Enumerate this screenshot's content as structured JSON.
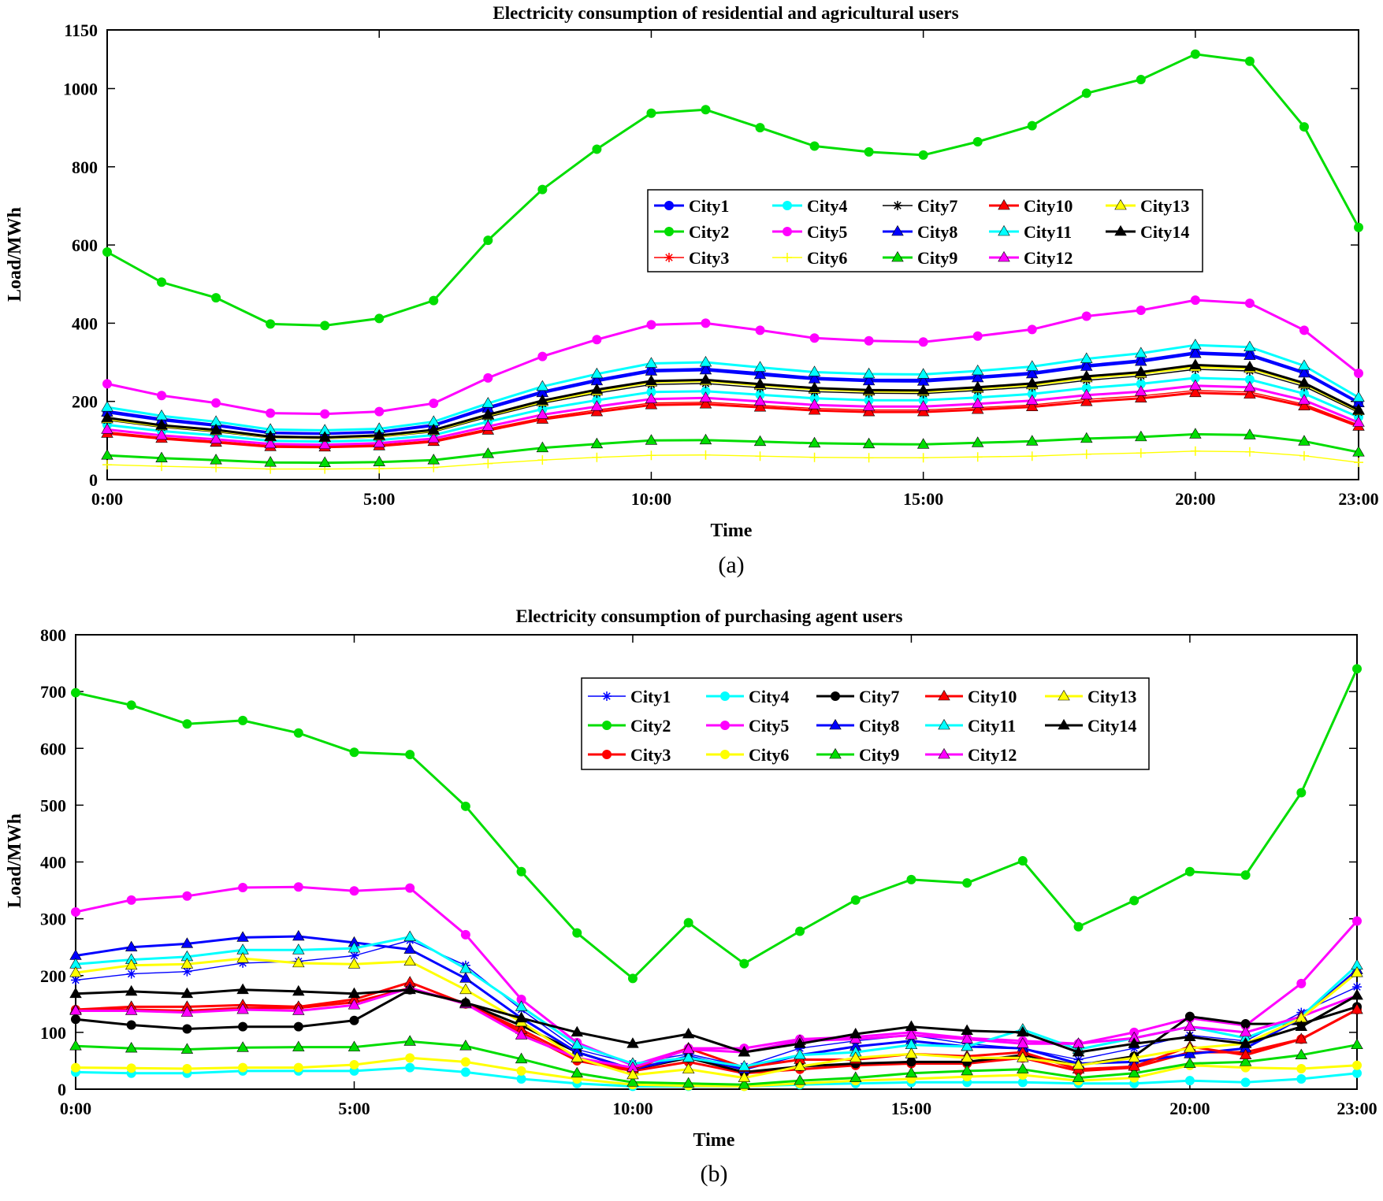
{
  "chart_data": [
    {
      "type": "line",
      "title": "Electricity consumption of residential and agricultural users",
      "xlabel": "Time",
      "ylabel": "Load/MWh",
      "caption": "(a)",
      "xlim": [
        0,
        23
      ],
      "ylim": [
        0,
        1150
      ],
      "xticks": [
        0,
        5,
        10,
        15,
        20,
        23
      ],
      "xtick_labels": [
        "0:00",
        "5:00",
        "10:00",
        "15:00",
        "20:00",
        "23:00"
      ],
      "yticks": [
        0,
        200,
        400,
        600,
        800,
        1000,
        1150
      ],
      "ytick_labels": [
        "0",
        "200",
        "400",
        "600",
        "800",
        "1000",
        "1150"
      ],
      "legend_position": "center-right",
      "legend_columns": 5,
      "x": [
        0,
        1,
        2,
        3,
        4,
        5,
        6,
        7,
        8,
        9,
        10,
        11,
        12,
        13,
        14,
        15,
        16,
        17,
        18,
        19,
        20,
        21,
        22,
        23
      ],
      "series": [
        {
          "name": "City1",
          "color": "#0000ff",
          "marker": "circle",
          "values": [
            175,
            155,
            140,
            120,
            118,
            122,
            140,
            185,
            225,
            255,
            280,
            283,
            272,
            260,
            255,
            255,
            263,
            273,
            292,
            305,
            325,
            320,
            275,
            198
          ]
        },
        {
          "name": "City2",
          "color": "#00dd00",
          "marker": "circle",
          "values": [
            582,
            505,
            465,
            398,
            394,
            412,
            458,
            612,
            742,
            845,
            937,
            946,
            900,
            853,
            838,
            830,
            864,
            905,
            988,
            1023,
            1088,
            1070,
            902,
            645
          ]
        },
        {
          "name": "City3",
          "color": "#ff0000",
          "marker": "asterisk",
          "values": [
            122,
            108,
            98,
            87,
            86,
            89,
            100,
            130,
            158,
            178,
            196,
            198,
            190,
            182,
            178,
            178,
            184,
            191,
            205,
            214,
            228,
            224,
            193,
            140
          ]
        },
        {
          "name": "City4",
          "color": "#00ffff",
          "marker": "circle",
          "values": [
            140,
            124,
            113,
            99,
            97,
            101,
            114,
            148,
            180,
            203,
            224,
            226,
            217,
            208,
            203,
            203,
            210,
            219,
            234,
            245,
            260,
            256,
            220,
            160
          ]
        },
        {
          "name": "City5",
          "color": "#ff00ff",
          "marker": "circle",
          "values": [
            245,
            215,
            196,
            170,
            168,
            174,
            195,
            260,
            315,
            358,
            396,
            400,
            382,
            362,
            355,
            352,
            367,
            384,
            418,
            433,
            459,
            451,
            382,
            272
          ]
        },
        {
          "name": "City6",
          "color": "#ffff00",
          "marker": "plus",
          "values": [
            38,
            34,
            31,
            27,
            27,
            28,
            31,
            41,
            50,
            57,
            62,
            63,
            60,
            57,
            56,
            56,
            58,
            60,
            65,
            68,
            73,
            71,
            61,
            44
          ]
        },
        {
          "name": "City7",
          "color": "#000000",
          "marker": "asterisk",
          "values": [
            152,
            134,
            122,
            107,
            105,
            109,
            122,
            160,
            195,
            221,
            243,
            246,
            235,
            225,
            221,
            220,
            228,
            237,
            254,
            265,
            282,
            278,
            238,
            172
          ]
        },
        {
          "name": "City8",
          "color": "#0000ff",
          "marker": "triangle",
          "values": [
            172,
            152,
            138,
            119,
            117,
            121,
            138,
            182,
            222,
            252,
            277,
            280,
            268,
            257,
            252,
            251,
            260,
            270,
            289,
            302,
            322,
            317,
            272,
            196
          ]
        },
        {
          "name": "City9",
          "color": "#00dd00",
          "marker": "triangle",
          "values": [
            62,
            55,
            50,
            44,
            43,
            45,
            50,
            66,
            81,
            91,
            100,
            101,
            97,
            93,
            91,
            90,
            94,
            98,
            105,
            109,
            116,
            114,
            98,
            70
          ]
        },
        {
          "name": "City10",
          "color": "#ff0000",
          "marker": "triangle",
          "values": [
            118,
            105,
            95,
            84,
            83,
            86,
            97,
            126,
            154,
            173,
            191,
            193,
            185,
            177,
            173,
            173,
            179,
            186,
            199,
            208,
            222,
            218,
            188,
            136
          ]
        },
        {
          "name": "City11",
          "color": "#00ffff",
          "marker": "triangle",
          "values": [
            185,
            163,
            148,
            128,
            126,
            130,
            148,
            195,
            238,
            270,
            297,
            300,
            287,
            275,
            270,
            269,
            278,
            289,
            309,
            323,
            344,
            339,
            291,
            210
          ]
        },
        {
          "name": "City12",
          "color": "#ff00ff",
          "marker": "triangle",
          "values": [
            128,
            113,
            103,
            91,
            89,
            93,
            105,
            136,
            166,
            187,
            206,
            209,
            200,
            191,
            187,
            187,
            194,
            202,
            216,
            225,
            240,
            236,
            203,
            146
          ]
        },
        {
          "name": "City13",
          "color": "#ffff00",
          "marker": "triangle",
          "values": [
            155,
            137,
            125,
            109,
            107,
            111,
            125,
            164,
            199,
            226,
            249,
            252,
            241,
            231,
            226,
            225,
            233,
            242,
            260,
            271,
            288,
            284,
            244,
            176
          ]
        },
        {
          "name": "City14",
          "color": "#000000",
          "marker": "triangle",
          "values": [
            158,
            139,
            127,
            110,
            108,
            113,
            127,
            166,
            202,
            230,
            252,
            255,
            244,
            234,
            229,
            228,
            236,
            246,
            264,
            275,
            293,
            288,
            247,
            178
          ]
        }
      ]
    },
    {
      "type": "line",
      "title": "Electricity consumption of purchasing agent users",
      "xlabel": "Time",
      "ylabel": "Load/MWh",
      "caption": "(b)",
      "xlim": [
        0,
        23
      ],
      "ylim": [
        0,
        800
      ],
      "xticks": [
        0,
        5,
        10,
        15,
        20,
        23
      ],
      "xtick_labels": [
        "0:00",
        "5:00",
        "10:00",
        "15:00",
        "20:00",
        "23:00"
      ],
      "yticks": [
        0,
        100,
        200,
        300,
        400,
        500,
        600,
        700,
        800
      ],
      "ytick_labels": [
        "0",
        "100",
        "200",
        "300",
        "400",
        "500",
        "600",
        "700",
        "800"
      ],
      "legend_position": "top-right",
      "legend_columns": 5,
      "x": [
        0,
        1,
        2,
        3,
        4,
        5,
        6,
        7,
        8,
        9,
        10,
        11,
        12,
        13,
        14,
        15,
        16,
        17,
        18,
        19,
        20,
        21,
        22,
        23
      ],
      "series": [
        {
          "name": "City1",
          "color": "#0000ff",
          "marker": "asterisk",
          "values": [
            192,
            203,
            207,
            222,
            225,
            235,
            262,
            218,
            140,
            70,
            45,
            62,
            40,
            72,
            85,
            95,
            80,
            72,
            52,
            72,
            95,
            85,
            135,
            180
          ]
        },
        {
          "name": "City2",
          "color": "#00dd00",
          "marker": "circle",
          "values": [
            698,
            676,
            643,
            649,
            627,
            593,
            589,
            498,
            383,
            275,
            195,
            293,
            221,
            278,
            333,
            369,
            363,
            402,
            286,
            332,
            383,
            377,
            522,
            740
          ]
        },
        {
          "name": "City3",
          "color": "#ff0000",
          "marker": "circle",
          "values": [
            140,
            140,
            138,
            143,
            143,
            153,
            178,
            150,
            100,
            50,
            32,
            48,
            28,
            35,
            42,
            45,
            45,
            55,
            32,
            38,
            65,
            65,
            88,
            140
          ]
        },
        {
          "name": "City4",
          "color": "#00ffff",
          "marker": "circle",
          "values": [
            30,
            28,
            28,
            32,
            32,
            32,
            38,
            30,
            18,
            10,
            5,
            5,
            5,
            8,
            10,
            12,
            12,
            12,
            10,
            10,
            15,
            12,
            18,
            28
          ]
        },
        {
          "name": "City5",
          "color": "#ff00ff",
          "marker": "circle",
          "values": [
            312,
            333,
            340,
            355,
            356,
            349,
            354,
            272,
            158,
            82,
            42,
            72,
            72,
            88,
            92,
            100,
            90,
            85,
            80,
            100,
            125,
            112,
            186,
            296
          ]
        },
        {
          "name": "City6",
          "color": "#ffff00",
          "marker": "circle",
          "values": [
            38,
            37,
            36,
            38,
            38,
            43,
            55,
            48,
            32,
            18,
            8,
            6,
            5,
            10,
            15,
            18,
            22,
            25,
            15,
            20,
            42,
            38,
            36,
            42
          ]
        },
        {
          "name": "City7",
          "color": "#000000",
          "marker": "circle",
          "values": [
            123,
            113,
            106,
            110,
            110,
            121,
            175,
            152,
            112,
            65,
            35,
            55,
            30,
            40,
            45,
            48,
            48,
            60,
            42,
            58,
            128,
            115,
            115,
            145
          ]
        },
        {
          "name": "City8",
          "color": "#0000ff",
          "marker": "triangle",
          "values": [
            235,
            250,
            256,
            267,
            269,
            258,
            246,
            195,
            125,
            65,
            35,
            58,
            35,
            60,
            75,
            85,
            75,
            72,
            45,
            48,
            62,
            72,
            125,
            210
          ]
        },
        {
          "name": "City9",
          "color": "#00dd00",
          "marker": "triangle",
          "values": [
            76,
            72,
            70,
            73,
            74,
            74,
            84,
            76,
            53,
            28,
            12,
            10,
            8,
            15,
            20,
            28,
            32,
            35,
            20,
            28,
            45,
            48,
            60,
            78
          ]
        },
        {
          "name": "City10",
          "color": "#ff0000",
          "marker": "triangle",
          "values": [
            140,
            145,
            145,
            148,
            145,
            158,
            188,
            150,
            105,
            55,
            35,
            72,
            38,
            52,
            52,
            62,
            58,
            65,
            35,
            40,
            75,
            60,
            88,
            140
          ]
        },
        {
          "name": "City11",
          "color": "#00ffff",
          "marker": "triangle",
          "values": [
            220,
            228,
            233,
            245,
            245,
            248,
            268,
            212,
            145,
            78,
            45,
            55,
            40,
            60,
            65,
            78,
            75,
            105,
            70,
            90,
            110,
            90,
            128,
            218
          ]
        },
        {
          "name": "City12",
          "color": "#ff00ff",
          "marker": "triangle",
          "values": [
            138,
            138,
            135,
            140,
            138,
            148,
            178,
            150,
            95,
            55,
            38,
            70,
            65,
            85,
            88,
            95,
            88,
            80,
            80,
            90,
            110,
            100,
            128,
            165
          ]
        },
        {
          "name": "City13",
          "color": "#ffff00",
          "marker": "triangle",
          "values": [
            205,
            218,
            220,
            230,
            222,
            220,
            225,
            175,
            118,
            55,
            25,
            35,
            20,
            40,
            55,
            62,
            55,
            55,
            42,
            55,
            72,
            80,
            125,
            205
          ]
        },
        {
          "name": "City14",
          "color": "#000000",
          "marker": "triangle",
          "values": [
            168,
            172,
            168,
            175,
            172,
            168,
            175,
            152,
            125,
            100,
            80,
            97,
            65,
            80,
            97,
            110,
            103,
            100,
            65,
            80,
            92,
            80,
            110,
            165
          ]
        }
      ]
    }
  ]
}
